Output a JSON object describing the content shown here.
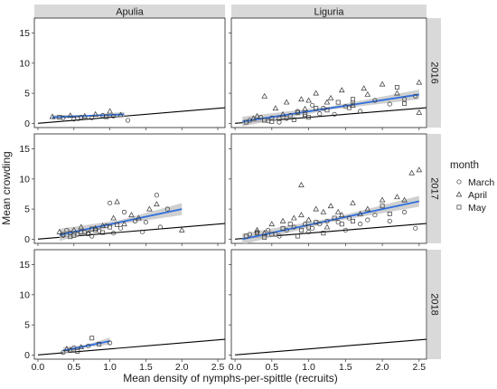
{
  "chart_data": {
    "type": "scatter",
    "xlabel": "Mean density of nymphs-per-spittle (recruits)",
    "ylabel": "Mean crowding",
    "xlim": [
      -0.05,
      2.6
    ],
    "ylim": [
      -0.7,
      17.5
    ],
    "x_ticks": [
      "0.0",
      "0.5",
      "1.0",
      "1.5",
      "2.0",
      "2.5"
    ],
    "y_ticks": [
      "0",
      "5",
      "10",
      "15"
    ],
    "columns": [
      "Apulia",
      "Liguria"
    ],
    "rows": [
      "2016",
      "2017",
      "2018"
    ],
    "legend": {
      "title": "month",
      "entries": [
        {
          "label": "March",
          "shape": "circle"
        },
        {
          "label": "April",
          "shape": "triangle"
        },
        {
          "label": "May",
          "shape": "square"
        }
      ],
      "placement": "right"
    },
    "reference_line": {
      "x": [
        0,
        2.6
      ],
      "y": [
        0,
        2.6
      ]
    },
    "colors": {
      "fit": "#2f6fde",
      "band": "#c8c8c8",
      "strip": "#d9d9d9",
      "ref": "#000000"
    },
    "panels": [
      {
        "column": "Apulia",
        "row": "2016",
        "fit": {
          "x": [
            0.2,
            1.2
          ],
          "y": [
            1.0,
            1.5
          ],
          "band": 0.4
        },
        "points": {
          "March": [
            [
              0.35,
              0.9
            ],
            [
              0.5,
              0.7
            ],
            [
              0.75,
              0.9
            ],
            [
              1.05,
              1.2
            ],
            [
              1.25,
              0.5
            ],
            [
              0.6,
              1.0
            ],
            [
              0.9,
              1.3
            ]
          ],
          "April": [
            [
              0.2,
              1.1
            ],
            [
              0.45,
              1.3
            ],
            [
              0.8,
              1.5
            ],
            [
              1.0,
              2.0
            ],
            [
              1.15,
              1.4
            ],
            [
              0.65,
              1.2
            ]
          ],
          "May": [
            [
              0.3,
              1.0
            ],
            [
              0.55,
              0.8
            ],
            [
              0.95,
              1.1
            ]
          ]
        }
      },
      {
        "column": "Liguria",
        "row": "2016",
        "fit": {
          "x": [
            0.1,
            2.5
          ],
          "y": [
            0.3,
            4.8
          ],
          "band": 0.8
        },
        "points": {
          "March": [
            [
              0.2,
              0.5
            ],
            [
              0.35,
              1.0
            ],
            [
              0.5,
              0.9
            ],
            [
              0.6,
              0.2
            ],
            [
              0.75,
              1.3
            ],
            [
              0.85,
              2.0
            ],
            [
              0.95,
              1.2
            ],
            [
              1.05,
              3.0
            ],
            [
              1.2,
              2.5
            ],
            [
              1.35,
              1.5
            ],
            [
              1.5,
              2.8
            ],
            [
              1.7,
              2.0
            ],
            [
              1.9,
              3.8
            ],
            [
              2.1,
              3.2
            ],
            [
              2.3,
              4.0
            ],
            [
              2.45,
              4.5
            ],
            [
              0.45,
              0.4
            ],
            [
              0.7,
              0.8
            ],
            [
              1.15,
              1.6
            ],
            [
              1.6,
              3.4
            ]
          ],
          "April": [
            [
              0.25,
              0.8
            ],
            [
              0.4,
              4.5
            ],
            [
              0.55,
              2.5
            ],
            [
              0.7,
              3.5
            ],
            [
              0.9,
              4.0
            ],
            [
              1.0,
              3.8
            ],
            [
              1.1,
              5.0
            ],
            [
              1.3,
              4.2
            ],
            [
              1.45,
              5.5
            ],
            [
              1.6,
              3.0
            ],
            [
              1.8,
              4.8
            ],
            [
              2.0,
              6.5
            ],
            [
              2.2,
              5.0
            ],
            [
              2.5,
              6.8
            ],
            [
              2.5,
              1.8
            ],
            [
              0.3,
              1.2
            ],
            [
              0.65,
              1.5
            ],
            [
              1.25,
              3.5
            ],
            [
              1.75,
              5.8
            ],
            [
              0.95,
              2.4
            ]
          ],
          "May": [
            [
              0.15,
              0.2
            ],
            [
              0.4,
              0.5
            ],
            [
              0.6,
              0.8
            ],
            [
              0.8,
              0.6
            ],
            [
              0.85,
              1.8
            ],
            [
              1.0,
              1.0
            ],
            [
              1.1,
              2.5
            ],
            [
              1.25,
              2.2
            ],
            [
              1.4,
              3.5
            ],
            [
              1.55,
              2.6
            ],
            [
              2.2,
              6.0
            ],
            [
              2.3,
              3.3
            ],
            [
              0.5,
              0.3
            ],
            [
              0.95,
              1.5
            ],
            [
              1.6,
              4.0
            ]
          ]
        }
      },
      {
        "column": "Apulia",
        "row": "2017",
        "fit": {
          "x": [
            0.3,
            2.0
          ],
          "y": [
            0.7,
            5.0
          ],
          "band": 1.0
        },
        "points": {
          "March": [
            [
              0.35,
              0.6
            ],
            [
              0.45,
              1.0
            ],
            [
              0.55,
              0.8
            ],
            [
              0.65,
              1.2
            ],
            [
              0.75,
              0.5
            ],
            [
              0.85,
              1.4
            ],
            [
              1.0,
              6.0
            ],
            [
              1.05,
              1.0
            ],
            [
              1.15,
              1.8
            ],
            [
              1.2,
              4.5
            ],
            [
              1.35,
              3.0
            ],
            [
              1.5,
              2.8
            ],
            [
              1.65,
              7.3
            ],
            [
              1.7,
              2.0
            ],
            [
              1.8,
              5.0
            ],
            [
              0.4,
              1.5
            ],
            [
              0.95,
              2.2
            ],
            [
              1.45,
              1.2
            ]
          ],
          "April": [
            [
              0.3,
              1.2
            ],
            [
              0.5,
              1.5
            ],
            [
              0.6,
              2.0
            ],
            [
              0.8,
              1.8
            ],
            [
              0.9,
              2.2
            ],
            [
              1.05,
              3.5
            ],
            [
              1.1,
              6.2
            ],
            [
              1.2,
              2.5
            ],
            [
              1.3,
              4.0
            ],
            [
              1.55,
              5.0
            ],
            [
              1.65,
              5.8
            ],
            [
              2.0,
              1.5
            ],
            [
              0.7,
              1.0
            ],
            [
              1.4,
              3.5
            ]
          ],
          "May": [
            [
              0.35,
              0.8
            ],
            [
              0.5,
              0.6
            ],
            [
              0.6,
              1.2
            ],
            [
              0.7,
              0.9
            ],
            [
              0.8,
              1.5
            ],
            [
              0.9,
              1.1
            ],
            [
              1.0,
              2.0
            ],
            [
              0.45,
              0.4
            ],
            [
              0.75,
              1.7
            ],
            [
              1.1,
              2.4
            ]
          ]
        }
      },
      {
        "column": "Liguria",
        "row": "2017",
        "fit": {
          "x": [
            0.1,
            2.5
          ],
          "y": [
            0.0,
            6.3
          ],
          "band": 0.9
        },
        "points": {
          "March": [
            [
              0.2,
              0.8
            ],
            [
              0.3,
              1.2
            ],
            [
              0.45,
              1.5
            ],
            [
              0.55,
              0.8
            ],
            [
              0.7,
              1.5
            ],
            [
              0.8,
              2.0
            ],
            [
              0.95,
              2.5
            ],
            [
              1.05,
              1.8
            ],
            [
              1.15,
              2.5
            ],
            [
              1.25,
              3.0
            ],
            [
              1.4,
              2.8
            ],
            [
              1.55,
              3.5
            ],
            [
              1.7,
              2.5
            ],
            [
              1.9,
              4.0
            ],
            [
              2.1,
              3.0
            ],
            [
              2.3,
              4.5
            ],
            [
              2.45,
              1.8
            ],
            [
              0.6,
              0.5
            ],
            [
              1.0,
              1.2
            ],
            [
              1.5,
              1.5
            ],
            [
              1.8,
              3.2
            ]
          ],
          "April": [
            [
              0.3,
              1.5
            ],
            [
              0.5,
              2.5
            ],
            [
              0.65,
              3.0
            ],
            [
              0.8,
              3.5
            ],
            [
              0.9,
              4.0
            ],
            [
              1.0,
              3.2
            ],
            [
              1.1,
              5.0
            ],
            [
              1.2,
              4.5
            ],
            [
              1.3,
              5.5
            ],
            [
              1.45,
              4.0
            ],
            [
              1.6,
              6.0
            ],
            [
              1.8,
              5.0
            ],
            [
              2.0,
              6.5
            ],
            [
              2.2,
              7.0
            ],
            [
              2.4,
              11.0
            ],
            [
              2.5,
              11.5
            ],
            [
              0.9,
              9.0
            ],
            [
              1.4,
              4.5
            ],
            [
              1.7,
              4.2
            ],
            [
              2.3,
              6.5
            ],
            [
              0.4,
              1.0
            ],
            [
              1.25,
              2.0
            ]
          ],
          "May": [
            [
              0.15,
              0.5
            ],
            [
              0.3,
              1.0
            ],
            [
              0.5,
              0.8
            ],
            [
              0.65,
              1.8
            ],
            [
              0.75,
              2.5
            ],
            [
              0.9,
              1.5
            ],
            [
              1.0,
              2.0
            ],
            [
              1.1,
              2.8
            ],
            [
              1.2,
              1.0
            ],
            [
              1.35,
              3.5
            ],
            [
              1.45,
              2.5
            ],
            [
              1.6,
              3.0
            ],
            [
              2.0,
              5.5
            ],
            [
              2.1,
              4.2
            ],
            [
              0.4,
              0.3
            ],
            [
              0.85,
              0.5
            ]
          ]
        }
      },
      {
        "column": "Apulia",
        "row": "2018",
        "fit": {
          "x": [
            0.35,
            1.0
          ],
          "y": [
            0.7,
            2.3
          ],
          "band": 0.6
        },
        "points": {
          "March": [
            [
              0.35,
              0.4
            ],
            [
              0.5,
              1.2
            ],
            [
              0.7,
              1.5
            ],
            [
              1.0,
              2.0
            ]
          ],
          "April": [
            [
              0.4,
              1.0
            ],
            [
              0.45,
              0.8
            ],
            [
              0.6,
              1.3
            ]
          ],
          "May": [
            [
              0.75,
              2.8
            ],
            [
              0.85,
              1.8
            ],
            [
              0.55,
              0.6
            ]
          ]
        }
      },
      {
        "column": "Liguria",
        "row": "2018",
        "fit": null,
        "points": {
          "March": [],
          "April": [],
          "May": []
        }
      }
    ]
  }
}
